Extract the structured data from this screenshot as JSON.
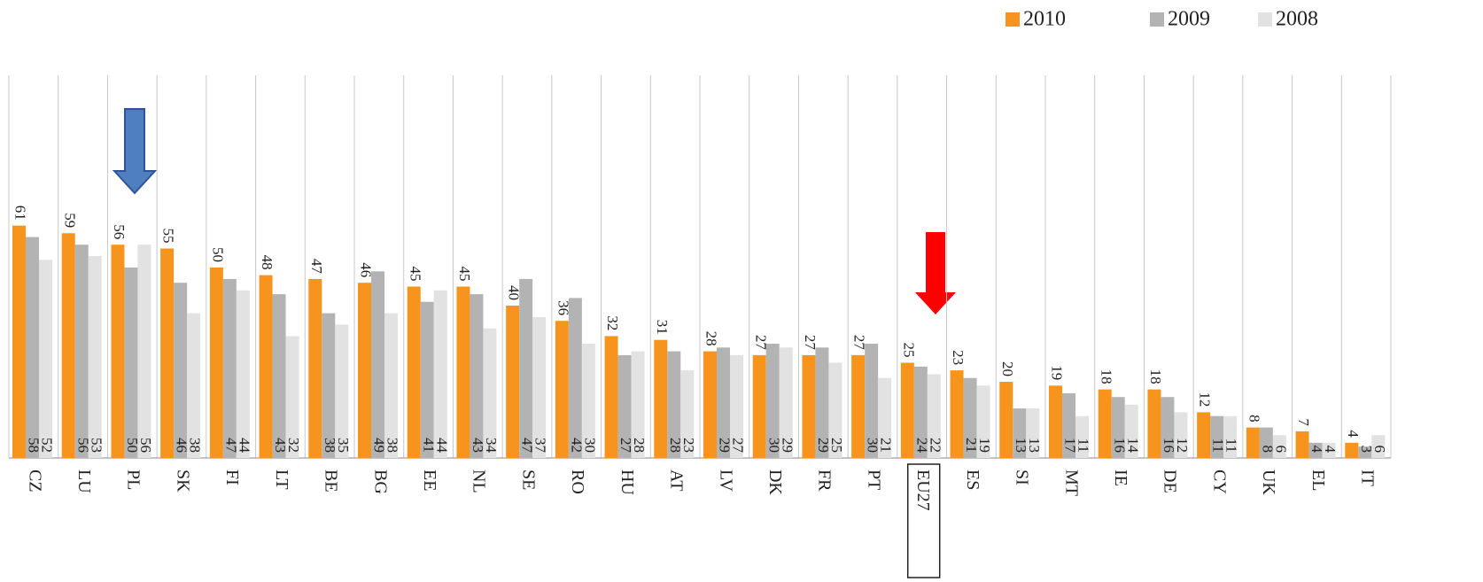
{
  "chart_data": {
    "type": "bar",
    "categories": [
      "CZ",
      "LU",
      "PL",
      "SK",
      "FI",
      "LT",
      "BE",
      "BG",
      "EE",
      "NL",
      "SE",
      "RO",
      "HU",
      "AT",
      "LV",
      "DK",
      "FR",
      "PT",
      "EU27",
      "ES",
      "SI",
      "MT",
      "IE",
      "DE",
      "CY",
      "UK",
      "EL",
      "IT"
    ],
    "series": [
      {
        "name": "2010",
        "color": "#f7941d",
        "values": [
          61,
          59,
          56,
          55,
          50,
          48,
          47,
          46,
          45,
          45,
          40,
          36,
          32,
          31,
          28,
          27,
          27,
          27,
          25,
          23,
          20,
          19,
          18,
          18,
          12,
          8,
          7,
          4
        ]
      },
      {
        "name": "2009",
        "color": "#b3b3b3",
        "values": [
          58,
          56,
          50,
          46,
          47,
          43,
          38,
          49,
          41,
          43,
          47,
          42,
          27,
          28,
          29,
          30,
          29,
          30,
          24,
          21,
          13,
          17,
          16,
          16,
          11,
          8,
          4,
          3
        ]
      },
      {
        "name": "2008",
        "color": "#e2e2e2",
        "values": [
          52,
          53,
          56,
          38,
          44,
          32,
          35,
          38,
          44,
          34,
          37,
          30,
          28,
          23,
          27,
          29,
          25,
          21,
          22,
          19,
          13,
          11,
          14,
          12,
          11,
          6,
          4,
          6
        ]
      }
    ],
    "legend": "top-right"
  }
}
